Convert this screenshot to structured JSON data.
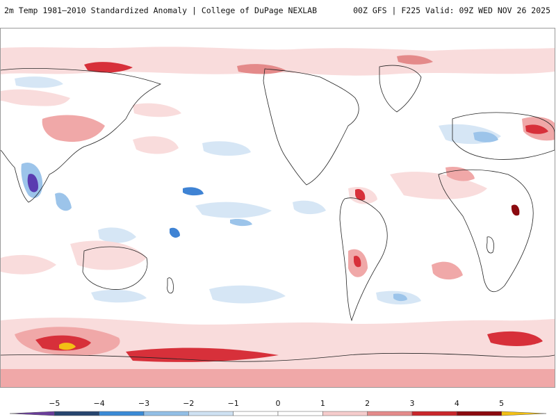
{
  "header": {
    "title": "2m Temp 1981–2010 Standardized Anomaly | College of DuPage NEXLAB",
    "run_info": "00Z GFS | F225 Valid: 09Z WED NOV 26 2025"
  },
  "legend": {
    "ticks": [
      "−5",
      "−4",
      "−3",
      "−2",
      "−1",
      "0",
      "1",
      "2",
      "3",
      "4",
      "5"
    ],
    "colors": [
      "#6a3d9a",
      "#26456e",
      "#3a8ad6",
      "#92bfe6",
      "#cfe2f3",
      "#ffffff",
      "#ffffff",
      "#f6cccc",
      "#e48a8a",
      "#c9262b",
      "#8b0a0f",
      "#f2c015"
    ]
  },
  "map": {
    "projection": "Global equirectangular, Pacific-centered",
    "colors": {
      "background": "#ffffff",
      "light_warm": "#f9dcdc",
      "warm": "#f0a8a8",
      "strong_warm": "#d7303a",
      "extreme_warm": "#8b0a0f",
      "yellow": "#f2c015",
      "light_cool": "#d6e6f5",
      "cool": "#9cc4ea",
      "strong_cool": "#3f83d4",
      "purple": "#5a3bb0",
      "coastline": "#222222"
    }
  }
}
